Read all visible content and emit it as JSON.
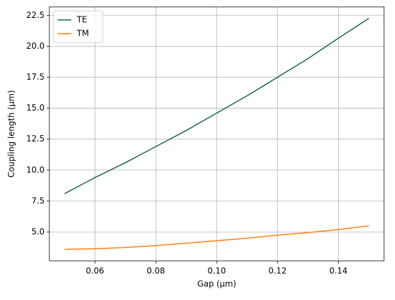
{
  "chart_data": {
    "type": "line",
    "x_label": "Gap (µm)",
    "y_label": "Coupling length (µm)",
    "x": [
      0.05,
      0.06,
      0.07,
      0.08,
      0.09,
      0.1,
      0.11,
      0.12,
      0.13,
      0.14,
      0.15
    ],
    "series": [
      {
        "name": "TE",
        "color": "#16663a",
        "values": [
          8.1,
          9.4,
          10.6,
          11.9,
          13.2,
          14.6,
          16.0,
          17.5,
          19.0,
          20.65,
          22.25
        ]
      },
      {
        "name": "TM",
        "color": "#ff7f0e",
        "values": [
          3.6,
          3.65,
          3.75,
          3.9,
          4.1,
          4.3,
          4.5,
          4.75,
          4.95,
          5.2,
          5.5
        ]
      }
    ],
    "xlim": [
      0.045,
      0.155
    ],
    "xticks": [
      0.06,
      0.08,
      {
        "value": 0.1,
        "label": "0.10"
      },
      0.12,
      0.14
    ],
    "ylim": [
      2.67,
      23.18
    ],
    "yticks": [
      {
        "value": 5,
        "label": "5.0"
      },
      7.5,
      {
        "value": 10,
        "label": "10.0"
      },
      12.5,
      {
        "value": 15,
        "label": "15.0"
      },
      17.5,
      {
        "value": 20,
        "label": "20.0"
      },
      22.5
    ],
    "grid": true,
    "legend": "upper-left"
  }
}
